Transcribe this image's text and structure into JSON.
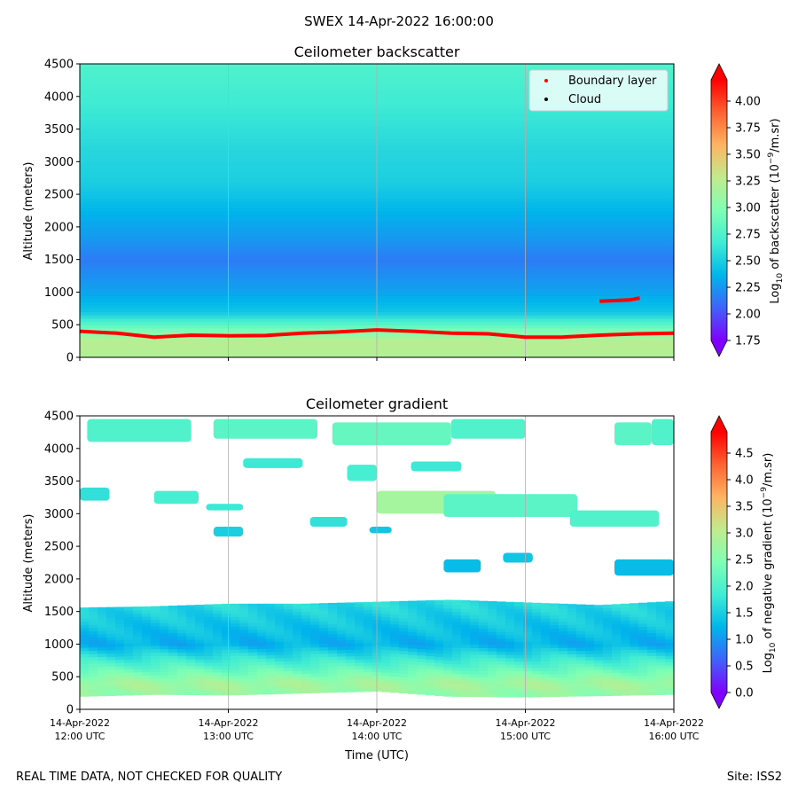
{
  "suptitle": "SWEX 14-Apr-2022 16:00:00",
  "footer": {
    "left": "REAL TIME DATA, NOT CHECKED FOR QUALITY",
    "right": "Site: ISS2"
  },
  "colors": {
    "colormap": [
      "#8000ff",
      "#4062fa",
      "#00b5eb",
      "#40ecd4",
      "#80ffb4",
      "#c0eb8d",
      "#ffb462",
      "#ff6232",
      "#ff0000"
    ],
    "boundary_layer": "#ff0000",
    "cloud": "#000000",
    "grid": "#b0b0b0"
  },
  "chart_data": [
    {
      "type": "heatmap",
      "title": "Ceilometer backscatter",
      "xlabel": "",
      "ylabel": "Altitude (meters)",
      "ylim": [
        0,
        4500
      ],
      "xlim": [
        "12:00",
        "16:00"
      ],
      "yticks": [
        "0",
        "500",
        "1000",
        "1500",
        "2000",
        "2500",
        "3000",
        "3500",
        "4000",
        "4500"
      ],
      "xticks": [
        "12:00",
        "13:00",
        "14:00",
        "15:00",
        "16:00"
      ],
      "xtick_labels_visible": false,
      "grid": "vertical",
      "colorbar": {
        "label": "Log10 of backscatter (10^-9/m.sr)",
        "range": [
          1.75,
          4.2
        ],
        "ticks": [
          "1.75",
          "2.00",
          "2.25",
          "2.50",
          "2.75",
          "3.00",
          "3.25",
          "3.50",
          "3.75",
          "4.00"
        ],
        "extend": "both"
      },
      "legend": {
        "position": "top-right",
        "entries": [
          {
            "label": "Boundary layer",
            "color": "#ff0000"
          },
          {
            "label": "Cloud",
            "color": "#000000"
          }
        ]
      },
      "profile": [
        {
          "altitude": 0,
          "value": 3.2
        },
        {
          "altitude": 250,
          "value": 3.25
        },
        {
          "altitude": 450,
          "value": 2.9
        },
        {
          "altitude": 700,
          "value": 2.45
        },
        {
          "altitude": 1000,
          "value": 2.3
        },
        {
          "altitude": 1500,
          "value": 2.15
        },
        {
          "altitude": 1800,
          "value": 2.25
        },
        {
          "altitude": 2200,
          "value": 2.35
        },
        {
          "altitude": 2700,
          "value": 2.5
        },
        {
          "altitude": 3200,
          "value": 2.55
        },
        {
          "altitude": 3800,
          "value": 2.65
        },
        {
          "altitude": 4500,
          "value": 2.75
        }
      ],
      "series": [
        {
          "name": "Boundary layer",
          "x_hours": [
            12.0,
            12.25,
            12.5,
            12.75,
            13.0,
            13.25,
            13.5,
            13.75,
            14.0,
            14.25,
            14.5,
            14.75,
            15.0,
            15.25,
            15.5,
            15.75,
            16.0
          ],
          "altitude": [
            400,
            370,
            310,
            340,
            330,
            335,
            370,
            390,
            420,
            400,
            370,
            360,
            310,
            310,
            340,
            360,
            370
          ]
        },
        {
          "name": "Boundary layer (upper)",
          "x_hours": [
            15.5,
            15.6,
            15.7,
            15.77
          ],
          "altitude": [
            860,
            870,
            880,
            910
          ]
        }
      ]
    },
    {
      "type": "heatmap",
      "title": "Ceilometer gradient",
      "xlabel": "Time (UTC)",
      "ylabel": "Altitude (meters)",
      "ylim": [
        0,
        4500
      ],
      "xlim": [
        "12:00",
        "16:00"
      ],
      "yticks": [
        "0",
        "500",
        "1000",
        "1500",
        "2000",
        "2500",
        "3000",
        "3500",
        "4000",
        "4500"
      ],
      "xticks": [
        "12:00",
        "13:00",
        "14:00",
        "15:00",
        "16:00"
      ],
      "xtick_labels": [
        [
          "14-Apr-2022",
          "12:00 UTC"
        ],
        [
          "14-Apr-2022",
          "13:00 UTC"
        ],
        [
          "14-Apr-2022",
          "14:00 UTC"
        ],
        [
          "14-Apr-2022",
          "15:00 UTC"
        ],
        [
          "14-Apr-2022",
          "16:00 UTC"
        ]
      ],
      "grid": "vertical",
      "colorbar": {
        "label": "Log10 of negative gradient (10^-9/m.sr)",
        "range": [
          0.0,
          4.9
        ],
        "ticks": [
          "0.0",
          "0.5",
          "1.0",
          "1.5",
          "2.0",
          "2.5",
          "3.0",
          "3.5",
          "4.0",
          "4.5"
        ],
        "extend": "both"
      },
      "profile": [
        {
          "altitude": 200,
          "value": 2.6
        },
        {
          "altitude": 400,
          "value": 2.8
        },
        {
          "altitude": 700,
          "value": 2.0
        },
        {
          "altitude": 1000,
          "value": 1.2
        },
        {
          "altitude": 1300,
          "value": 1.4
        },
        {
          "altitude": 1600,
          "value": 1.6
        }
      ],
      "layer_top": [
        1560,
        1580,
        1620,
        1620,
        1650,
        1680,
        1640,
        1600,
        1660
      ],
      "layer_bottom": [
        200,
        230,
        220,
        250,
        280,
        200,
        190,
        210,
        230
      ],
      "cloud_patches": [
        {
          "t0": 12.05,
          "t1": 12.75,
          "a0": 4100,
          "a1": 4450,
          "value": 2.0
        },
        {
          "t0": 12.9,
          "t1": 13.6,
          "a0": 4150,
          "a1": 4450,
          "value": 2.1
        },
        {
          "t0": 13.7,
          "t1": 14.5,
          "a0": 4050,
          "a1": 4400,
          "value": 2.2
        },
        {
          "t0": 14.5,
          "t1": 15.0,
          "a0": 4150,
          "a1": 4450,
          "value": 2.0
        },
        {
          "t0": 15.6,
          "t1": 15.85,
          "a0": 4050,
          "a1": 4400,
          "value": 2.1
        },
        {
          "t0": 15.85,
          "t1": 16.0,
          "a0": 4050,
          "a1": 4450,
          "value": 2.0
        },
        {
          "t0": 13.1,
          "t1": 13.5,
          "a0": 3700,
          "a1": 3850,
          "value": 1.8
        },
        {
          "t0": 13.8,
          "t1": 14.0,
          "a0": 3500,
          "a1": 3750,
          "value": 1.9
        },
        {
          "t0": 14.23,
          "t1": 14.57,
          "a0": 3650,
          "a1": 3800,
          "value": 1.8
        },
        {
          "t0": 14.0,
          "t1": 14.8,
          "a0": 3000,
          "a1": 3350,
          "value": 2.8
        },
        {
          "t0": 14.45,
          "t1": 15.35,
          "a0": 2950,
          "a1": 3300,
          "value": 2.1
        },
        {
          "t0": 15.3,
          "t1": 15.9,
          "a0": 2800,
          "a1": 3050,
          "value": 2.0
        },
        {
          "t0": 12.5,
          "t1": 12.8,
          "a0": 3150,
          "a1": 3350,
          "value": 1.9
        },
        {
          "t0": 12.0,
          "t1": 12.2,
          "a0": 3200,
          "a1": 3400,
          "value": 1.7
        },
        {
          "t0": 12.85,
          "t1": 13.1,
          "a0": 3050,
          "a1": 3150,
          "value": 1.8
        },
        {
          "t0": 12.9,
          "t1": 13.1,
          "a0": 2650,
          "a1": 2800,
          "value": 1.5
        },
        {
          "t0": 13.55,
          "t1": 13.8,
          "a0": 2800,
          "a1": 2950,
          "value": 1.7
        },
        {
          "t0": 13.95,
          "t1": 14.1,
          "a0": 2700,
          "a1": 2800,
          "value": 1.4
        },
        {
          "t0": 14.45,
          "t1": 14.7,
          "a0": 2100,
          "a1": 2300,
          "value": 1.3
        },
        {
          "t0": 14.85,
          "t1": 15.05,
          "a0": 2250,
          "a1": 2400,
          "value": 1.4
        },
        {
          "t0": 15.6,
          "t1": 16.0,
          "a0": 2050,
          "a1": 2300,
          "value": 1.3
        }
      ]
    }
  ]
}
